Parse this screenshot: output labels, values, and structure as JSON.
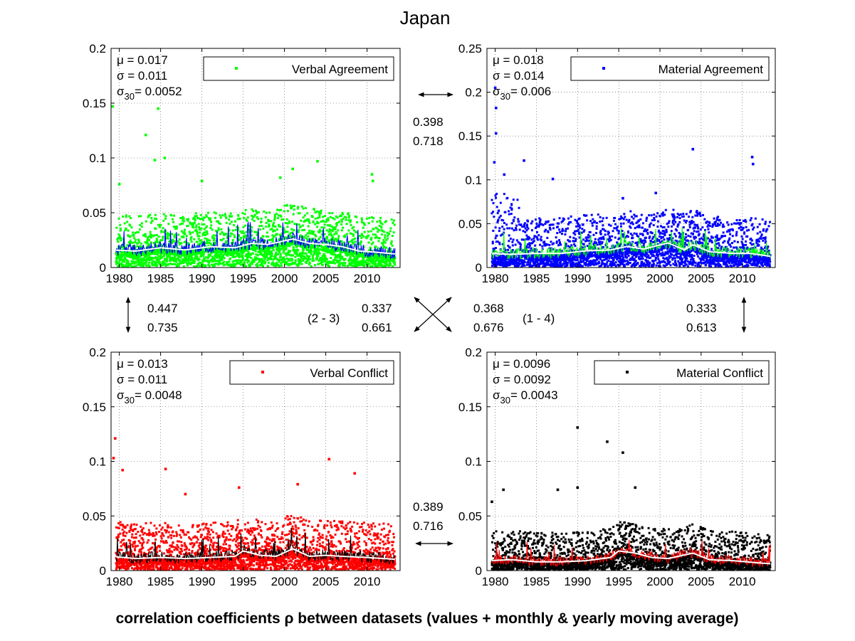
{
  "figure": {
    "title": "Japan",
    "xlabel": "correlation coefficients ρ between datasets (values + monthly & yearly moving average)"
  },
  "chart_data": [
    {
      "type": "scatter",
      "legend": "Verbal Agreement",
      "stats": {
        "mu": "μ    = 0.017",
        "sigma": "σ    = 0.011",
        "sigma30_value": "= 0.0052"
      },
      "x_range": [
        1979,
        2014
      ],
      "ylim": [
        0,
        0.2
      ],
      "yticks": [
        "0",
        "0.05",
        "0.1",
        "0.15",
        "0.2"
      ],
      "xticks": [
        "1980",
        "1985",
        "1990",
        "1995",
        "2000",
        "2005",
        "2010"
      ],
      "grid": true,
      "legend_position": "top-right",
      "colors": {
        "points": "#00ff00",
        "monthly_avg": "#0000ff",
        "yearly_avg": "#ffffff"
      },
      "mean": 0.017,
      "sd": 0.011,
      "sigma30": 0.0052,
      "outliers": [
        [
          1979.2,
          0.147
        ],
        [
          1983.2,
          0.121
        ],
        [
          1984.7,
          0.145
        ],
        [
          1985.5,
          0.1
        ],
        [
          1984.3,
          0.098
        ],
        [
          1980.0,
          0.076
        ],
        [
          2001.0,
          0.09
        ],
        [
          2004.0,
          0.097
        ],
        [
          2010.6,
          0.085
        ],
        [
          2010.7,
          0.079
        ],
        [
          1999.5,
          0.082
        ],
        [
          1990.0,
          0.079
        ]
      ],
      "moving_average": [
        [
          1979,
          0.016
        ],
        [
          1982,
          0.015
        ],
        [
          1985,
          0.018
        ],
        [
          1988,
          0.016
        ],
        [
          1991,
          0.019
        ],
        [
          1994,
          0.018
        ],
        [
          1996,
          0.022
        ],
        [
          1998,
          0.021
        ],
        [
          2001,
          0.026
        ],
        [
          2003,
          0.022
        ],
        [
          2005,
          0.021
        ],
        [
          2007,
          0.019
        ],
        [
          2009,
          0.015
        ],
        [
          2011,
          0.014
        ],
        [
          2014,
          0.012
        ]
      ]
    },
    {
      "type": "scatter",
      "legend": "Material Agreement",
      "stats": {
        "mu": "μ    = 0.018",
        "sigma": "σ    = 0.014",
        "sigma30_value": "= 0.006"
      },
      "x_range": [
        1979,
        2014
      ],
      "ylim": [
        0,
        0.25
      ],
      "yticks": [
        "0",
        "0.05",
        "0.1",
        "0.15",
        "0.2",
        "0.25"
      ],
      "xticks": [
        "1980",
        "1985",
        "1990",
        "1995",
        "2000",
        "2005",
        "2010"
      ],
      "grid": true,
      "legend_position": "top-right",
      "colors": {
        "points": "#0000ff",
        "monthly_avg": "#00ff00",
        "yearly_avg": "#ffffff"
      },
      "mean": 0.018,
      "sd": 0.014,
      "sigma30": 0.006,
      "outliers": [
        [
          1980.0,
          0.205
        ],
        [
          1980.1,
          0.182
        ],
        [
          1980.1,
          0.153
        ],
        [
          1979.9,
          0.12
        ],
        [
          1981.1,
          0.106
        ],
        [
          1983.5,
          0.122
        ],
        [
          2004.0,
          0.135
        ],
        [
          2011.2,
          0.126
        ],
        [
          2011.3,
          0.118
        ],
        [
          1987.0,
          0.101
        ],
        [
          1995.5,
          0.079
        ],
        [
          1999.5,
          0.085
        ]
      ],
      "moving_average": [
        [
          1979,
          0.016
        ],
        [
          1982,
          0.015
        ],
        [
          1985,
          0.016
        ],
        [
          1988,
          0.016
        ],
        [
          1991,
          0.019
        ],
        [
          1994,
          0.02
        ],
        [
          1996,
          0.024
        ],
        [
          1998,
          0.021
        ],
        [
          2001,
          0.028
        ],
        [
          2003,
          0.02
        ],
        [
          2004,
          0.026
        ],
        [
          2006,
          0.018
        ],
        [
          2009,
          0.016
        ],
        [
          2011,
          0.016
        ],
        [
          2014,
          0.012
        ]
      ]
    },
    {
      "type": "scatter",
      "legend": "Verbal Conflict",
      "stats": {
        "mu": "μ    = 0.013",
        "sigma": "σ    = 0.011",
        "sigma30_value": "= 0.0048"
      },
      "x_range": [
        1979,
        2014
      ],
      "ylim": [
        0,
        0.2
      ],
      "yticks": [
        "0",
        "0.05",
        "0.1",
        "0.15",
        "0.2"
      ],
      "xticks": [
        "1980",
        "1985",
        "1990",
        "1995",
        "2000",
        "2005",
        "2010"
      ],
      "grid": true,
      "legend_position": "top-right",
      "colors": {
        "points": "#ff0000",
        "monthly_avg": "#000000",
        "yearly_avg": "#ffffff"
      },
      "mean": 0.013,
      "sd": 0.011,
      "sigma30": 0.0048,
      "outliers": [
        [
          1979.5,
          0.121
        ],
        [
          1979.3,
          0.103
        ],
        [
          1980.4,
          0.092
        ],
        [
          1985.6,
          0.093
        ],
        [
          2005.4,
          0.102
        ],
        [
          1994.5,
          0.076
        ],
        [
          2001.6,
          0.079
        ],
        [
          2008.5,
          0.089
        ],
        [
          1988.0,
          0.07
        ]
      ],
      "moving_average": [
        [
          1979,
          0.013
        ],
        [
          1982,
          0.011
        ],
        [
          1985,
          0.012
        ],
        [
          1988,
          0.011
        ],
        [
          1991,
          0.012
        ],
        [
          1994,
          0.013
        ],
        [
          1995,
          0.018
        ],
        [
          1997,
          0.014
        ],
        [
          1999,
          0.013
        ],
        [
          2001,
          0.02
        ],
        [
          2003,
          0.013
        ],
        [
          2005,
          0.014
        ],
        [
          2007,
          0.013
        ],
        [
          2010,
          0.012
        ],
        [
          2014,
          0.01
        ]
      ]
    },
    {
      "type": "scatter",
      "legend": "Material Conflict",
      "stats": {
        "mu": "μ    = 0.0096",
        "sigma": "σ    = 0.0092",
        "sigma30_value": "= 0.0043"
      },
      "x_range": [
        1979,
        2014
      ],
      "ylim": [
        0,
        0.2
      ],
      "yticks": [
        "0",
        "0.05",
        "0.1",
        "0.15",
        "0.2"
      ],
      "xticks": [
        "1980",
        "1985",
        "1990",
        "1995",
        "2000",
        "2005",
        "2010"
      ],
      "grid": true,
      "legend_position": "top-right",
      "colors": {
        "points": "#000000",
        "monthly_avg": "#ff0000",
        "yearly_avg": "#ffffff"
      },
      "mean": 0.0096,
      "sd": 0.0092,
      "sigma30": 0.0043,
      "outliers": [
        [
          1990.0,
          0.131
        ],
        [
          1993.6,
          0.118
        ],
        [
          1995.5,
          0.108
        ],
        [
          1990.0,
          0.076
        ],
        [
          1981.0,
          0.074
        ],
        [
          1987.6,
          0.074
        ],
        [
          1997.0,
          0.076
        ],
        [
          1979.6,
          0.063
        ]
      ],
      "moving_average": [
        [
          1979,
          0.009
        ],
        [
          1982,
          0.01
        ],
        [
          1985,
          0.008
        ],
        [
          1988,
          0.008
        ],
        [
          1991,
          0.009
        ],
        [
          1994,
          0.012
        ],
        [
          1995,
          0.018
        ],
        [
          1997,
          0.016
        ],
        [
          1999,
          0.012
        ],
        [
          2001,
          0.011
        ],
        [
          2004,
          0.016
        ],
        [
          2006,
          0.01
        ],
        [
          2009,
          0.009
        ],
        [
          2012,
          0.007
        ],
        [
          2014,
          0.006
        ]
      ]
    }
  ],
  "correlations": {
    "top": {
      "r1": "0.398",
      "r2": "0.718"
    },
    "bottom": {
      "r1": "0.389",
      "r2": "0.716"
    },
    "left": {
      "r1": "0.447",
      "r2": "0.735"
    },
    "right": {
      "r1": "0.333",
      "r2": "0.613"
    },
    "diag_23": {
      "label": "(2 - 3)",
      "r1": "0.337",
      "r2": "0.661"
    },
    "diag_14": {
      "label": "(1 - 4)",
      "r1": "0.368",
      "r2": "0.676"
    }
  }
}
